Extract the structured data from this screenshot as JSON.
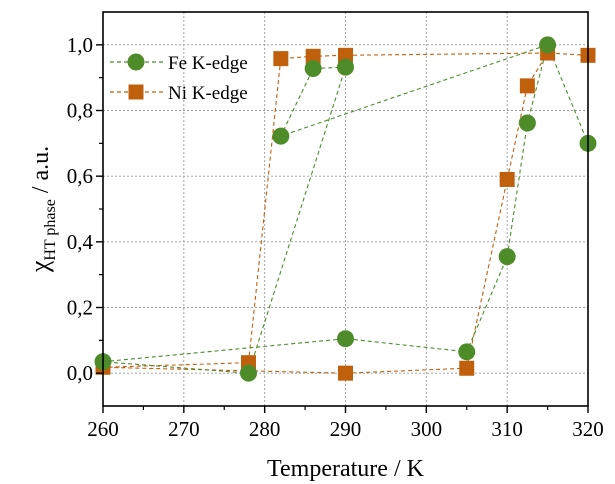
{
  "chart_data": {
    "type": "scatter",
    "title": "",
    "xlabel": "Temperature / K",
    "ylabel": {
      "symbol": "χ",
      "subscript": "HT phase",
      "suffix": " / a.u."
    },
    "xlim": [
      260,
      320
    ],
    "ylim": [
      -0.1,
      1.1
    ],
    "x_ticks": [
      260,
      270,
      280,
      290,
      300,
      310,
      320
    ],
    "x_tick_labels": [
      "260",
      "270",
      "280",
      "290",
      "300",
      "310",
      "320"
    ],
    "y_ticks": [
      0.0,
      0.2,
      0.4,
      0.6,
      0.8,
      1.0
    ],
    "y_tick_labels": [
      "0,0",
      "0,2",
      "0,4",
      "0,6",
      "0,8",
      "1,0"
    ],
    "grid": true,
    "legend_position": "top-left",
    "series": [
      {
        "name": "Fe K-edge",
        "marker": "circle",
        "color": "#4e8c2a",
        "line_color": "#4e8c2a",
        "line_style": "dashed",
        "x": [
          260,
          290,
          305,
          310,
          312.5,
          315,
          282,
          286,
          290,
          278,
          260
        ],
        "y": [
          0.035,
          0.105,
          0.065,
          0.355,
          0.762,
          1.0,
          0.722,
          0.928,
          0.932,
          0.0,
          0.035
        ]
      },
      {
        "name": "Ni K-edge",
        "marker": "square",
        "color": "#c0600c",
        "line_color": "#c0600c",
        "line_style": "dashed",
        "x": [
          320,
          315,
          290,
          286,
          282,
          278,
          260,
          290,
          305,
          310,
          312.5,
          315
        ],
        "y": [
          0.968,
          0.975,
          0.968,
          0.965,
          0.958,
          0.032,
          0.018,
          0.0,
          0.015,
          0.59,
          0.875,
          0.975
        ]
      }
    ],
    "fe_tail": {
      "x": [
        315,
        320
      ],
      "y": [
        1.0,
        0.7
      ]
    }
  }
}
